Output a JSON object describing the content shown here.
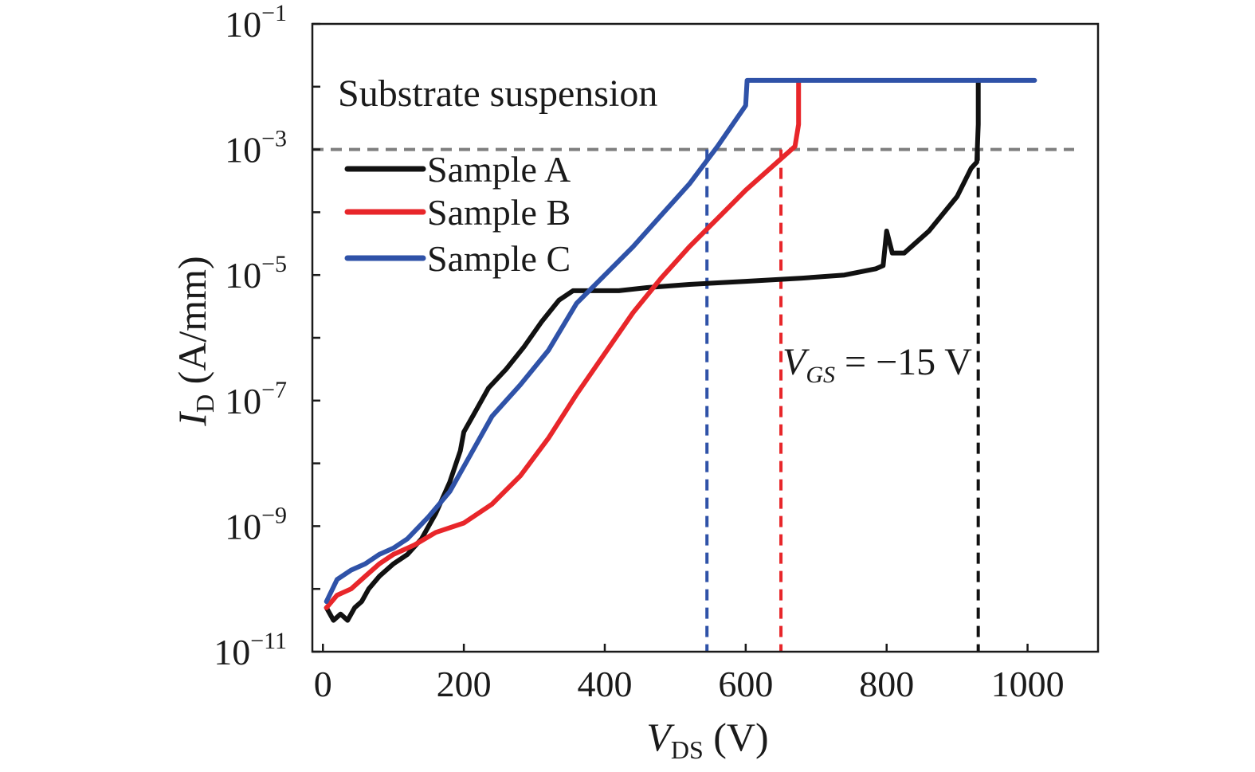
{
  "chart_data": {
    "type": "line",
    "title": "",
    "xlabel": {
      "main": "V",
      "sub": "DS",
      "unit": " (V)"
    },
    "ylabel": {
      "main": "I",
      "sub": "D",
      "unit": " (A/mm)"
    },
    "xlim": [
      -15,
      1100
    ],
    "ylim_log10": [
      -11,
      -1
    ],
    "x_ticks": [
      {
        "value": 0,
        "label": "0"
      },
      {
        "value": 200,
        "label": "200"
      },
      {
        "value": 400,
        "label": "400"
      },
      {
        "value": 600,
        "label": "600"
      },
      {
        "value": 800,
        "label": "800"
      },
      {
        "value": 1000,
        "label": "1000"
      }
    ],
    "y_ticks": [
      {
        "exp": -1,
        "base": "10",
        "power": "−1"
      },
      {
        "exp": -3,
        "base": "10",
        "power": "−3"
      },
      {
        "exp": -5,
        "base": "10",
        "power": "−5"
      },
      {
        "exp": -7,
        "base": "10",
        "power": "−7"
      },
      {
        "exp": -9,
        "base": "10",
        "power": "−9"
      },
      {
        "exp": -11,
        "base": "10",
        "power": "−11"
      }
    ],
    "annotations": {
      "substrate": "Substrate suspension",
      "vgs_main": "V",
      "vgs_sub": "GS",
      "vgs_value": " = −15 V"
    },
    "threshold": {
      "log10_value": -3,
      "color": "#7f7f7f"
    },
    "series": [
      {
        "name": "Sample A",
        "color": "#111111",
        "breakdown_v": 930,
        "points": [
          [
            5,
            -10.3
          ],
          [
            15,
            -10.5
          ],
          [
            25,
            -10.4
          ],
          [
            35,
            -10.5
          ],
          [
            45,
            -10.3
          ],
          [
            55,
            -10.2
          ],
          [
            65,
            -10.0
          ],
          [
            80,
            -9.8
          ],
          [
            100,
            -9.6
          ],
          [
            120,
            -9.45
          ],
          [
            140,
            -9.2
          ],
          [
            160,
            -8.8
          ],
          [
            180,
            -8.3
          ],
          [
            195,
            -7.8
          ],
          [
            200,
            -7.5
          ],
          [
            215,
            -7.2
          ],
          [
            235,
            -6.8
          ],
          [
            260,
            -6.5
          ],
          [
            285,
            -6.15
          ],
          [
            310,
            -5.75
          ],
          [
            335,
            -5.4
          ],
          [
            355,
            -5.25
          ],
          [
            380,
            -5.25
          ],
          [
            420,
            -5.25
          ],
          [
            460,
            -5.2
          ],
          [
            520,
            -5.15
          ],
          [
            600,
            -5.1
          ],
          [
            680,
            -5.05
          ],
          [
            740,
            -5.0
          ],
          [
            785,
            -4.9
          ],
          [
            795,
            -4.85
          ],
          [
            800,
            -4.3
          ],
          [
            808,
            -4.65
          ],
          [
            825,
            -4.65
          ],
          [
            860,
            -4.3
          ],
          [
            900,
            -3.75
          ],
          [
            920,
            -3.3
          ],
          [
            928,
            -3.2
          ],
          [
            930,
            -2.6
          ],
          [
            930,
            -1.9
          ]
        ]
      },
      {
        "name": "Sample B",
        "color": "#e8262a",
        "breakdown_v": 650,
        "points": [
          [
            5,
            -10.3
          ],
          [
            20,
            -10.1
          ],
          [
            40,
            -10.0
          ],
          [
            60,
            -9.8
          ],
          [
            80,
            -9.6
          ],
          [
            100,
            -9.45
          ],
          [
            130,
            -9.3
          ],
          [
            160,
            -9.1
          ],
          [
            200,
            -8.95
          ],
          [
            240,
            -8.65
          ],
          [
            280,
            -8.2
          ],
          [
            320,
            -7.6
          ],
          [
            360,
            -6.9
          ],
          [
            400,
            -6.25
          ],
          [
            440,
            -5.6
          ],
          [
            480,
            -5.05
          ],
          [
            520,
            -4.55
          ],
          [
            560,
            -4.1
          ],
          [
            600,
            -3.65
          ],
          [
            640,
            -3.25
          ],
          [
            670,
            -2.95
          ],
          [
            675,
            -2.6
          ],
          [
            675,
            -1.9
          ]
        ]
      },
      {
        "name": "Sample C",
        "color": "#2f52a8",
        "breakdown_v": 545,
        "points": [
          [
            5,
            -10.2
          ],
          [
            20,
            -9.85
          ],
          [
            40,
            -9.7
          ],
          [
            60,
            -9.6
          ],
          [
            80,
            -9.45
          ],
          [
            100,
            -9.35
          ],
          [
            120,
            -9.2
          ],
          [
            150,
            -8.85
          ],
          [
            180,
            -8.45
          ],
          [
            210,
            -7.85
          ],
          [
            240,
            -7.25
          ],
          [
            280,
            -6.75
          ],
          [
            320,
            -6.2
          ],
          [
            360,
            -5.45
          ],
          [
            400,
            -5.0
          ],
          [
            440,
            -4.55
          ],
          [
            480,
            -4.05
          ],
          [
            520,
            -3.55
          ],
          [
            560,
            -2.95
          ],
          [
            600,
            -2.3
          ],
          [
            602,
            -1.9
          ],
          [
            1010,
            -1.9
          ]
        ]
      }
    ],
    "legend": {
      "position": "upper-left",
      "entries": [
        "Sample A",
        "Sample B",
        "Sample C"
      ]
    }
  }
}
